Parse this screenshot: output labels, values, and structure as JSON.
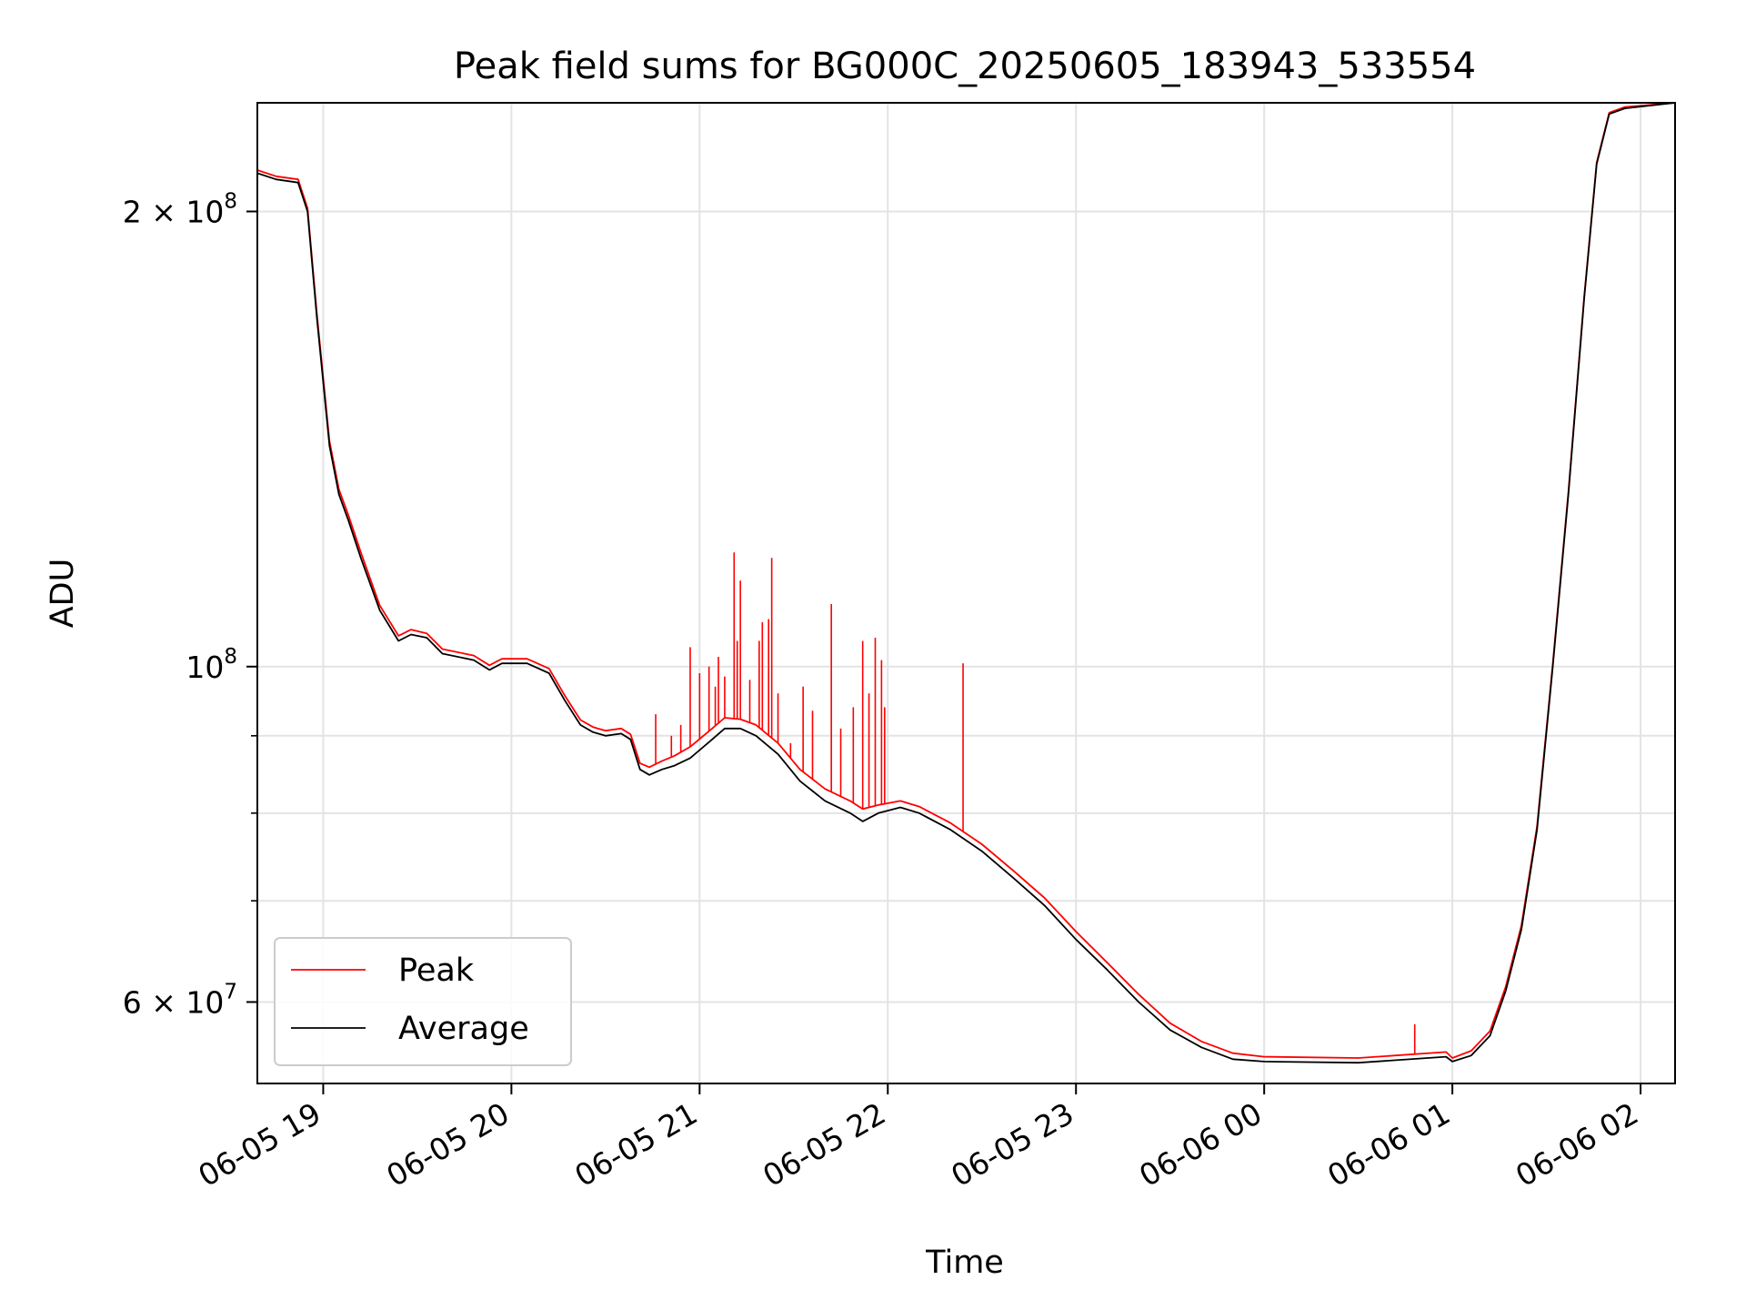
{
  "chart_data": {
    "type": "line",
    "title": "Peak field sums for BG000C_20250605_183943_533554",
    "xlabel": "Time",
    "ylabel": "ADU",
    "yscale": "log",
    "xlim": [
      "2025-06-05 18:39",
      "2025-06-06 02:11"
    ],
    "ylim": [
      53000000,
      236000000
    ],
    "grid": true,
    "legend_position": "lower-left",
    "x_ticks": [
      {
        "t": "2025-06-05 19:00",
        "label": "06-05 19"
      },
      {
        "t": "2025-06-05 20:00",
        "label": "06-05 20"
      },
      {
        "t": "2025-06-05 21:00",
        "label": "06-05 21"
      },
      {
        "t": "2025-06-05 22:00",
        "label": "06-05 22"
      },
      {
        "t": "2025-06-05 23:00",
        "label": "06-05 23"
      },
      {
        "t": "2025-06-06 00:00",
        "label": "06-06 00"
      },
      {
        "t": "2025-06-06 01:00",
        "label": "06-06 01"
      },
      {
        "t": "2025-06-06 02:00",
        "label": "06-06 02"
      }
    ],
    "y_major_ticks": [
      {
        "value": 60000000,
        "mant": "6 × 10",
        "exp": "7"
      },
      {
        "value": 100000000,
        "mant": "10",
        "exp": "8"
      },
      {
        "value": 200000000,
        "mant": "2 × 10",
        "exp": "8"
      }
    ],
    "y_minor_ticks": [
      70000000,
      80000000,
      90000000
    ],
    "series": [
      {
        "name": "Average",
        "color": "#000000",
        "points": [
          [
            "2025-06-05 18:39",
            212000000
          ],
          [
            "2025-06-05 18:45",
            210000000
          ],
          [
            "2025-06-05 18:52",
            209000000
          ],
          [
            "2025-06-05 18:55",
            200000000
          ],
          [
            "2025-06-05 18:58",
            170000000
          ],
          [
            "2025-06-05 19:02",
            140000000
          ],
          [
            "2025-06-05 19:05",
            130000000
          ],
          [
            "2025-06-05 19:08",
            125000000
          ],
          [
            "2025-06-05 19:12",
            118000000
          ],
          [
            "2025-06-05 19:18",
            109000000
          ],
          [
            "2025-06-05 19:24",
            104000000
          ],
          [
            "2025-06-05 19:28",
            105000000
          ],
          [
            "2025-06-05 19:33",
            104500000
          ],
          [
            "2025-06-05 19:38",
            102000000
          ],
          [
            "2025-06-05 19:48",
            101000000
          ],
          [
            "2025-06-05 19:53",
            99500000
          ],
          [
            "2025-06-05 19:57",
            100500000
          ],
          [
            "2025-06-05 20:05",
            100500000
          ],
          [
            "2025-06-05 20:12",
            99000000
          ],
          [
            "2025-06-05 20:17",
            95000000
          ],
          [
            "2025-06-05 20:22",
            91500000
          ],
          [
            "2025-06-05 20:26",
            90500000
          ],
          [
            "2025-06-05 20:30",
            90000000
          ],
          [
            "2025-06-05 20:35",
            90300000
          ],
          [
            "2025-06-05 20:38",
            89500000
          ],
          [
            "2025-06-05 20:41",
            85500000
          ],
          [
            "2025-06-05 20:44",
            84800000
          ],
          [
            "2025-06-05 20:48",
            85500000
          ],
          [
            "2025-06-05 20:52",
            86000000
          ],
          [
            "2025-06-05 20:57",
            87000000
          ],
          [
            "2025-06-05 21:04",
            89500000
          ],
          [
            "2025-06-05 21:08",
            91000000
          ],
          [
            "2025-06-05 21:13",
            91000000
          ],
          [
            "2025-06-05 21:18",
            90000000
          ],
          [
            "2025-06-05 21:25",
            87500000
          ],
          [
            "2025-06-05 21:32",
            84000000
          ],
          [
            "2025-06-05 21:40",
            81500000
          ],
          [
            "2025-06-05 21:48",
            80000000
          ],
          [
            "2025-06-05 21:52",
            79000000
          ],
          [
            "2025-06-05 21:57",
            80000000
          ],
          [
            "2025-06-05 22:04",
            80700000
          ],
          [
            "2025-06-05 22:10",
            80000000
          ],
          [
            "2025-06-05 22:20",
            78000000
          ],
          [
            "2025-06-05 22:30",
            75500000
          ],
          [
            "2025-06-05 22:40",
            72500000
          ],
          [
            "2025-06-05 22:50",
            69500000
          ],
          [
            "2025-06-05 23:00",
            66000000
          ],
          [
            "2025-06-05 23:10",
            63000000
          ],
          [
            "2025-06-05 23:20",
            60000000
          ],
          [
            "2025-06-05 23:30",
            57500000
          ],
          [
            "2025-06-05 23:40",
            56000000
          ],
          [
            "2025-06-05 23:50",
            55000000
          ],
          [
            "2025-06-06 00:00",
            54800000
          ],
          [
            "2025-06-06 00:30",
            54700000
          ],
          [
            "2025-06-06 00:58",
            55200000
          ],
          [
            "2025-06-06 01:00",
            54800000
          ],
          [
            "2025-06-06 01:06",
            55300000
          ],
          [
            "2025-06-06 01:12",
            57000000
          ],
          [
            "2025-06-06 01:17",
            61000000
          ],
          [
            "2025-06-06 01:22",
            67000000
          ],
          [
            "2025-06-06 01:27",
            78000000
          ],
          [
            "2025-06-06 01:32",
            100000000
          ],
          [
            "2025-06-06 01:37",
            130000000
          ],
          [
            "2025-06-06 01:42",
            175000000
          ],
          [
            "2025-06-06 01:46",
            215000000
          ],
          [
            "2025-06-06 01:50",
            232000000
          ],
          [
            "2025-06-06 01:55",
            234000000
          ],
          [
            "2025-06-06 02:11",
            236000000
          ]
        ]
      },
      {
        "name": "Peak",
        "color": "#ff0000",
        "points": [
          [
            "2025-06-05 18:39",
            213000000
          ],
          [
            "2025-06-05 18:45",
            211000000
          ],
          [
            "2025-06-05 18:52",
            210000000
          ],
          [
            "2025-06-05 18:55",
            201000000
          ],
          [
            "2025-06-05 18:58",
            171000000
          ],
          [
            "2025-06-05 19:02",
            141000000
          ],
          [
            "2025-06-05 19:05",
            131000000
          ],
          [
            "2025-06-05 19:08",
            126000000
          ],
          [
            "2025-06-05 19:12",
            119000000
          ],
          [
            "2025-06-05 19:18",
            109800000
          ],
          [
            "2025-06-05 19:24",
            104800000
          ],
          [
            "2025-06-05 19:28",
            105800000
          ],
          [
            "2025-06-05 19:33",
            105200000
          ],
          [
            "2025-06-05 19:38",
            102700000
          ],
          [
            "2025-06-05 19:48",
            101700000
          ],
          [
            "2025-06-05 19:53",
            100200000
          ],
          [
            "2025-06-05 19:57",
            101200000
          ],
          [
            "2025-06-05 20:05",
            101200000
          ],
          [
            "2025-06-05 20:12",
            99700000
          ],
          [
            "2025-06-05 20:17",
            95700000
          ],
          [
            "2025-06-05 20:22",
            92200000
          ],
          [
            "2025-06-05 20:26",
            91200000
          ],
          [
            "2025-06-05 20:30",
            90700000
          ],
          [
            "2025-06-05 20:35",
            91000000
          ],
          [
            "2025-06-05 20:38",
            90200000
          ],
          [
            "2025-06-05 20:41",
            86300000
          ],
          [
            "2025-06-05 20:44",
            85800000
          ],
          [
            "2025-06-05 20:48",
            86600000
          ],
          [
            "2025-06-05 20:52",
            87300000
          ],
          [
            "2025-06-05 20:57",
            88500000
          ],
          [
            "2025-06-05 21:04",
            91000000
          ],
          [
            "2025-06-05 21:08",
            92500000
          ],
          [
            "2025-06-05 21:13",
            92300000
          ],
          [
            "2025-06-05 21:18",
            91500000
          ],
          [
            "2025-06-05 21:25",
            89000000
          ],
          [
            "2025-06-05 21:32",
            85500000
          ],
          [
            "2025-06-05 21:40",
            83000000
          ],
          [
            "2025-06-05 21:48",
            81500000
          ],
          [
            "2025-06-05 21:52",
            80500000
          ],
          [
            "2025-06-05 21:57",
            81000000
          ],
          [
            "2025-06-05 22:04",
            81500000
          ],
          [
            "2025-06-05 22:10",
            80800000
          ],
          [
            "2025-06-05 22:20",
            78800000
          ],
          [
            "2025-06-05 22:30",
            76300000
          ],
          [
            "2025-06-05 22:40",
            73300000
          ],
          [
            "2025-06-05 22:50",
            70300000
          ],
          [
            "2025-06-05 23:00",
            66800000
          ],
          [
            "2025-06-05 23:10",
            63700000
          ],
          [
            "2025-06-05 23:20",
            60700000
          ],
          [
            "2025-06-05 23:30",
            58100000
          ],
          [
            "2025-06-05 23:40",
            56500000
          ],
          [
            "2025-06-05 23:50",
            55500000
          ],
          [
            "2025-06-06 00:00",
            55200000
          ],
          [
            "2025-06-06 00:30",
            55100000
          ],
          [
            "2025-06-06 00:58",
            55600000
          ],
          [
            "2025-06-06 01:00",
            55100000
          ],
          [
            "2025-06-06 01:06",
            55700000
          ],
          [
            "2025-06-06 01:12",
            57400000
          ],
          [
            "2025-06-06 01:17",
            61400000
          ],
          [
            "2025-06-06 01:22",
            67400000
          ],
          [
            "2025-06-06 01:27",
            78400000
          ],
          [
            "2025-06-06 01:32",
            100400000
          ],
          [
            "2025-06-06 01:37",
            130500000
          ],
          [
            "2025-06-06 01:42",
            175500000
          ],
          [
            "2025-06-06 01:46",
            215500000
          ],
          [
            "2025-06-06 01:50",
            232500000
          ],
          [
            "2025-06-06 01:55",
            234500000
          ],
          [
            "2025-06-06 02:11",
            236000000
          ]
        ],
        "spikes": [
          [
            "2025-06-05 20:46",
            93000000
          ],
          [
            "2025-06-05 20:51",
            90000000
          ],
          [
            "2025-06-05 20:54",
            91500000
          ],
          [
            "2025-06-05 20:57",
            103000000
          ],
          [
            "2025-06-05 21:00",
            99000000
          ],
          [
            "2025-06-05 21:03",
            100000000
          ],
          [
            "2025-06-05 21:05",
            97000000
          ],
          [
            "2025-06-05 21:06",
            101500000
          ],
          [
            "2025-06-05 21:08",
            98500000
          ],
          [
            "2025-06-05 21:11",
            119000000
          ],
          [
            "2025-06-05 21:12",
            104000000
          ],
          [
            "2025-06-05 21:13",
            114000000
          ],
          [
            "2025-06-05 21:16",
            98000000
          ],
          [
            "2025-06-05 21:19",
            104000000
          ],
          [
            "2025-06-05 21:20",
            107000000
          ],
          [
            "2025-06-05 21:22",
            107500000
          ],
          [
            "2025-06-05 21:23",
            118000000
          ],
          [
            "2025-06-05 21:25",
            96000000
          ],
          [
            "2025-06-05 21:29",
            89000000
          ],
          [
            "2025-06-05 21:33",
            97000000
          ],
          [
            "2025-06-05 21:36",
            93500000
          ],
          [
            "2025-06-05 21:42",
            110000000
          ],
          [
            "2025-06-05 21:45",
            91000000
          ],
          [
            "2025-06-05 21:49",
            94000000
          ],
          [
            "2025-06-05 21:52",
            104000000
          ],
          [
            "2025-06-05 21:54",
            96000000
          ],
          [
            "2025-06-05 21:56",
            104500000
          ],
          [
            "2025-06-05 21:58",
            101000000
          ],
          [
            "2025-06-05 21:59",
            94000000
          ],
          [
            "2025-06-05 22:24",
            100500000
          ],
          [
            "2025-06-06 00:48",
            58000000
          ]
        ]
      }
    ]
  }
}
